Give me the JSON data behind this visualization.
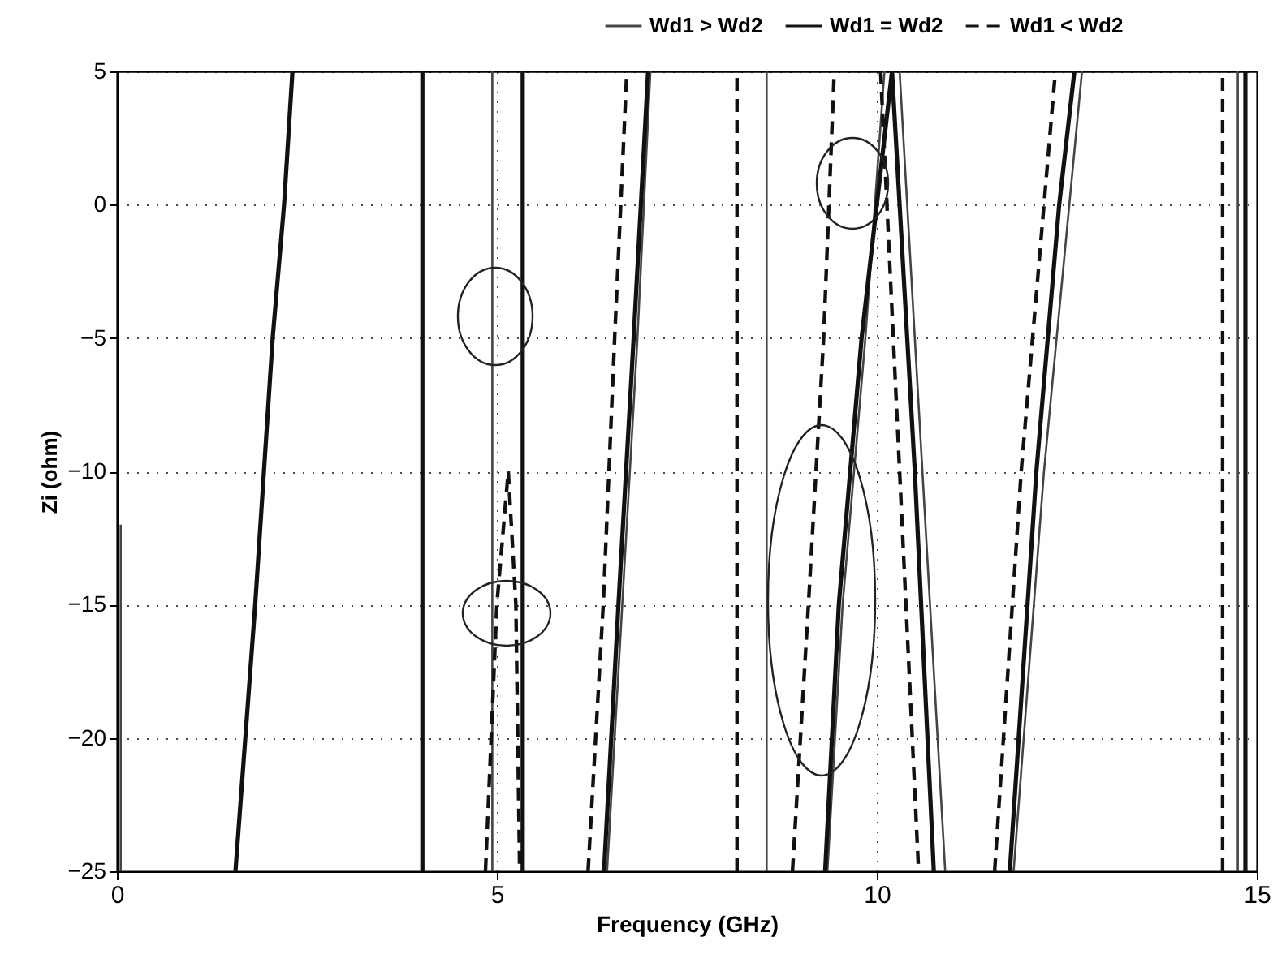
{
  "chart_data": {
    "type": "line",
    "xlabel": "Frequency (GHz)",
    "ylabel": "Zi (ohm)",
    "xlim": [
      0,
      15
    ],
    "ylim": [
      -25,
      5
    ],
    "xticks": [
      0,
      5,
      10,
      15
    ],
    "yticks": [
      5,
      0,
      -5,
      -10,
      -15,
      -20,
      -25
    ],
    "grid": true,
    "legend": "top right",
    "series": [
      {
        "name": "Wd1 > Wd2",
        "color": "#444444",
        "line_style": "solid",
        "x": [
          0.05,
          0.05,
          null,
          4.94,
          4.94,
          null,
          6.45,
          6.65,
          6.85,
          7.02,
          null,
          8.55,
          8.55,
          null,
          9.35,
          9.55,
          9.85,
          10.1,
          null,
          10.3,
          10.6,
          10.9,
          null,
          11.8,
          12.2,
          12.7,
          null,
          14.75,
          14.75
        ],
        "values": [
          -25,
          -12,
          null,
          -25,
          5,
          null,
          -25,
          -15,
          -5,
          5,
          null,
          -25,
          5,
          null,
          -25,
          -15,
          -5,
          5,
          null,
          5,
          -10,
          -25,
          null,
          -25,
          -10,
          5,
          null,
          -25,
          5
        ]
      },
      {
        "name": "Wd1 = Wd2",
        "color": "#111111",
        "line_style": "solid",
        "x": [
          1.56,
          1.82,
          2.05,
          2.2,
          2.31,
          null,
          4.02,
          4.02,
          null,
          5.34,
          5.34,
          null,
          6.41,
          6.6,
          6.8,
          6.99,
          null,
          9.32,
          9.5,
          9.8,
          10.0,
          10.2,
          10.5,
          10.75,
          null,
          11.75,
          12.1,
          12.4,
          12.6,
          null,
          14.85,
          14.85
        ],
        "values": [
          -25,
          -15,
          -5,
          0,
          5,
          null,
          -25,
          5,
          null,
          -25,
          5,
          null,
          -25,
          -15,
          -5,
          5,
          null,
          -25,
          -15,
          -5,
          0,
          5,
          -10,
          -25,
          null,
          -25,
          -10,
          0,
          5,
          null,
          -25,
          5
        ]
      },
      {
        "name": "Wd1 < Wd2",
        "color": "#111111",
        "line_style": "dashed",
        "x": [
          4.85,
          5.0,
          5.15,
          5.25,
          5.3,
          null,
          6.2,
          6.4,
          6.55,
          6.71,
          null,
          8.16,
          8.16,
          null,
          8.89,
          9.1,
          9.3,
          9.44,
          null,
          10.05,
          10.3,
          10.55,
          null,
          11.55,
          11.9,
          12.35,
          null,
          14.55,
          14.55
        ],
        "values": [
          -25,
          -15,
          -10,
          -15,
          -25,
          null,
          -25,
          -15,
          -5,
          5,
          null,
          -25,
          5,
          null,
          -25,
          -15,
          -5,
          5,
          null,
          5,
          -10,
          -25,
          null,
          -25,
          -10,
          5,
          null,
          -25,
          5
        ]
      }
    ]
  }
}
